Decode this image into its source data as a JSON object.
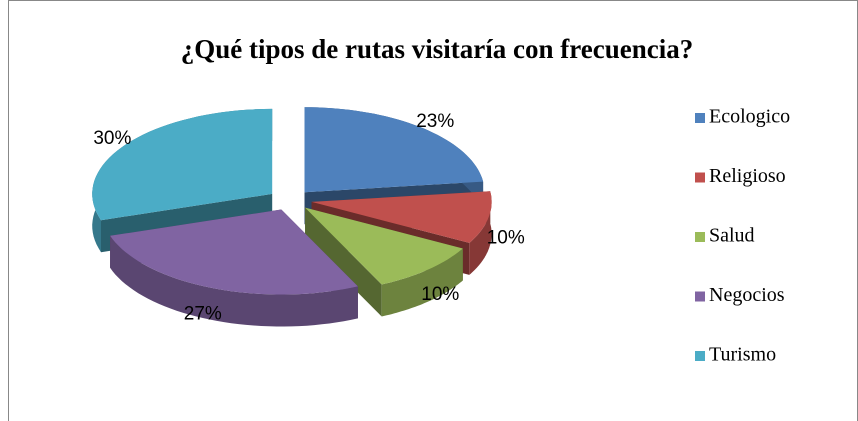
{
  "chart_data": {
    "type": "pie",
    "title": "¿Qué tipos de rutas visitaría con frecuencia?",
    "categories": [
      "Ecologico",
      "Religioso",
      "Salud",
      "Negocios",
      "Turismo"
    ],
    "values": [
      23,
      10,
      10,
      27,
      30
    ],
    "value_labels": [
      "23%",
      "10%",
      "10%",
      "27%",
      "30%"
    ],
    "colors": [
      "#4f81bd",
      "#c0504d",
      "#9bbb59",
      "#8064a2",
      "#4bacc6"
    ],
    "legend": "right"
  }
}
